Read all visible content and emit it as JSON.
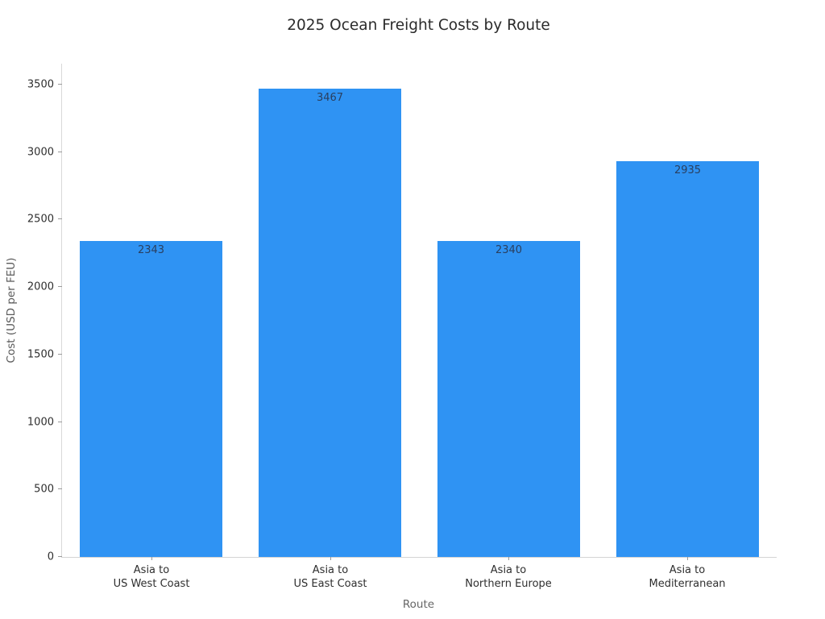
{
  "chart_data": {
    "type": "bar",
    "title": "2025 Ocean Freight Costs by Route",
    "xlabel": "Route",
    "ylabel": "Cost (USD per FEU)",
    "categories": [
      "Asia to\nUS West Coast",
      "Asia to\nUS East Coast",
      "Asia to\nNorthern Europe",
      "Asia to\nMediterranean"
    ],
    "values": [
      2343,
      3467,
      2340,
      2935
    ],
    "value_labels": [
      "2343",
      "3467",
      "2340",
      "2935"
    ],
    "yticks": [
      0,
      500,
      1000,
      1500,
      2000,
      2500,
      3000,
      3500
    ],
    "ytick_labels": [
      "0",
      "500",
      "1000",
      "1500",
      "2000",
      "2500",
      "3000",
      "3500"
    ],
    "ylim": [
      0,
      3655
    ],
    "grid": false,
    "legend": null,
    "value_label_position": "inside-top",
    "colors": {
      "bar": "#2F93F3",
      "value_label": "#2a3f5f",
      "tick_label": "#2f2f2f",
      "axis_title": "#5f5f5f",
      "spine": "#d8d8d8",
      "background": "#ffffff"
    }
  }
}
